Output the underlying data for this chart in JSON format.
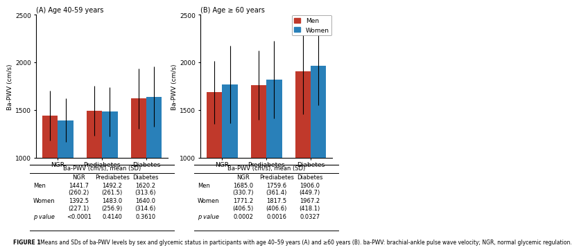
{
  "panel_A": {
    "title": "(A) Age 40-59 years",
    "categories": [
      "NGR",
      "Prediabetes",
      "Diabetes"
    ],
    "men_means": [
      1441.7,
      1492.2,
      1620.2
    ],
    "men_sds": [
      260.2,
      261.5,
      313.6
    ],
    "women_means": [
      1392.5,
      1483.0,
      1640.0
    ],
    "women_sds": [
      227.1,
      256.9,
      314.6
    ],
    "ylim": [
      1000,
      2500
    ],
    "yticks": [
      1000,
      1500,
      2000,
      2500
    ],
    "table_men": [
      "1441.7\n(260.2)",
      "1492.2\n(261.5)",
      "1620.2\n(313.6)"
    ],
    "table_women": [
      "1392.5\n(227.1)",
      "1483.0\n(256.9)",
      "1640.0\n(314.6)"
    ],
    "table_pvalue": [
      "<0.0001",
      "0.4140",
      "0.3610"
    ]
  },
  "panel_B": {
    "title": "(B) Age ≥ 60 years",
    "categories": [
      "NGR",
      "Prediabetes",
      "Diabetes"
    ],
    "men_means": [
      1685.0,
      1759.6,
      1906.0
    ],
    "men_sds": [
      330.7,
      361.4,
      449.7
    ],
    "women_means": [
      1771.2,
      1817.5,
      1967.2
    ],
    "women_sds": [
      406.5,
      406.6,
      418.1
    ],
    "ylim": [
      1000,
      2500
    ],
    "yticks": [
      1000,
      1500,
      2000,
      2500
    ],
    "table_men": [
      "1685.0\n(330.7)",
      "1759.6\n(361.4)",
      "1906.0\n(449.7)"
    ],
    "table_women": [
      "1771.2\n(406.5)",
      "1817.5\n(406.6)",
      "1967.2\n(418.1)"
    ],
    "table_pvalue": [
      "0.0002",
      "0.0016",
      "0.0327"
    ]
  },
  "men_color": "#C0392B",
  "women_color": "#2980B9",
  "bar_width": 0.35,
  "ylabel": "Ba-PWV (cm/s)",
  "table_header": "Ba-PWV (cm/s), mean (SD)",
  "caption_bold": "FIGURE 1",
  "caption_normal": "   Means and SDs of ba-PWV levels by sex and glycemic status in participants with age 40–59 years (A) and ≥60 years (B). ba-PWV: brachial-ankle pulse wave velocity; NGR, normal glycemic regulation.",
  "legend_men": "Men",
  "legend_women": "Women"
}
